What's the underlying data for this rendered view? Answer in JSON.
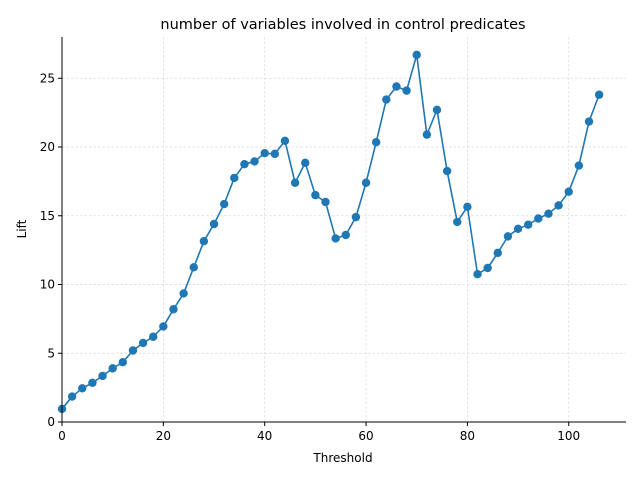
{
  "chart_data": {
    "type": "line",
    "title": "number of variables involved in control predicates",
    "xlabel": "Threshold",
    "ylabel": "Lift",
    "xlim": [
      0,
      111.3
    ],
    "ylim": [
      0,
      28.0
    ],
    "xticks": [
      0,
      20,
      40,
      60,
      80,
      100
    ],
    "yticks": [
      0,
      5,
      10,
      15,
      20,
      25
    ],
    "grid": true,
    "color": "#1f77b4",
    "marker": "circle",
    "series": [
      {
        "x": [
          0,
          2,
          4,
          6,
          8,
          10,
          12,
          14,
          16,
          18,
          20,
          22,
          24,
          26,
          28,
          30,
          32,
          34,
          36,
          38,
          40,
          42,
          44,
          46,
          48,
          50,
          52,
          54,
          56,
          58,
          60,
          62,
          64,
          66,
          68,
          70,
          72,
          74,
          76,
          78,
          80,
          82,
          84,
          86,
          88,
          90,
          92,
          94,
          96,
          98,
          100,
          102,
          104,
          106
        ],
        "values": [
          0.95,
          1.85,
          2.45,
          2.85,
          3.35,
          3.9,
          4.35,
          5.2,
          5.75,
          6.2,
          6.95,
          8.2,
          9.35,
          11.25,
          13.15,
          14.4,
          15.85,
          17.75,
          18.75,
          18.95,
          19.55,
          19.5,
          20.45,
          17.4,
          18.85,
          16.5,
          16.0,
          13.35,
          13.6,
          14.9,
          17.4,
          20.35,
          23.45,
          24.4,
          24.1,
          26.7,
          20.9,
          22.7,
          18.25,
          14.55,
          15.65,
          10.75,
          11.2,
          12.3,
          13.5,
          14.05,
          14.35,
          14.8,
          15.15,
          15.75,
          16.75,
          18.65,
          21.85,
          23.8
        ]
      }
    ]
  }
}
